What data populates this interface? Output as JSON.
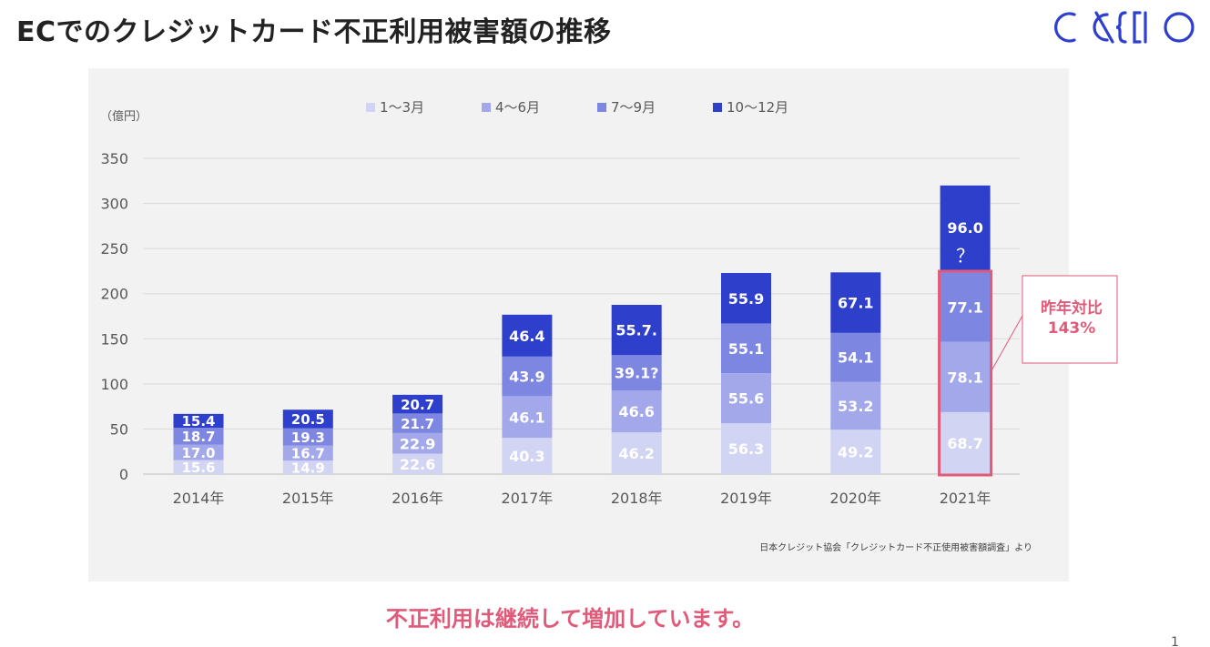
{
  "title": "ECでのクレジットカード不正利用被害額の推移",
  "logo_text": "CAXIO",
  "tagline": "不正利用は継続して増加しています。",
  "page_number": "1",
  "chart_data": {
    "type": "bar",
    "stacked": true,
    "unit_label": "（億円）",
    "source": "日本クレジット協会「クレジットカード不正使用被害額調査」より",
    "categories": [
      "2014年",
      "2015年",
      "2016年",
      "2017年",
      "2018年",
      "2019年",
      "2020年",
      "2021年"
    ],
    "ylim": [
      0,
      350
    ],
    "yticks": [
      0,
      50,
      100,
      150,
      200,
      250,
      300,
      350
    ],
    "grid": true,
    "legend_position": "top",
    "series": [
      {
        "name": "1〜3月",
        "color": "#d2d4f3",
        "values": [
          15.6,
          14.9,
          22.6,
          40.3,
          46.2,
          56.3,
          49.2,
          68.7
        ],
        "labels": [
          "15.6",
          "14.9",
          "22.6",
          "40.3",
          "46.2",
          "56.3",
          "49.2",
          "68.7"
        ]
      },
      {
        "name": "4〜6月",
        "color": "#a2a8ea",
        "values": [
          17.0,
          16.7,
          22.9,
          46.1,
          46.6,
          55.6,
          53.2,
          78.1
        ],
        "labels": [
          "17.0",
          "16.7",
          "22.9",
          "46.1",
          "46.6",
          "55.6",
          "53.2",
          "78.1"
        ]
      },
      {
        "name": "7〜9月",
        "color": "#7d86e0",
        "values": [
          18.7,
          19.3,
          21.7,
          43.9,
          39.1,
          55.1,
          54.1,
          77.1
        ],
        "labels": [
          "18.7",
          "19.3",
          "21.7",
          "43.9",
          "39.1?",
          "55.1",
          "54.1",
          "77.1"
        ]
      },
      {
        "name": "10〜12月",
        "color": "#2e3fcc",
        "values": [
          15.4,
          20.5,
          20.7,
          46.4,
          55.7,
          55.9,
          67.1,
          96.0
        ],
        "labels": [
          "15.4",
          "20.5",
          "20.7",
          "46.4",
          "55.7.",
          "55.9",
          "67.1",
          "96.0"
        ]
      }
    ],
    "annotations": {
      "estimate_mark": "？",
      "callout_lines": [
        "昨年対比",
        "143%"
      ],
      "highlight_color": "#e05a7a"
    }
  }
}
